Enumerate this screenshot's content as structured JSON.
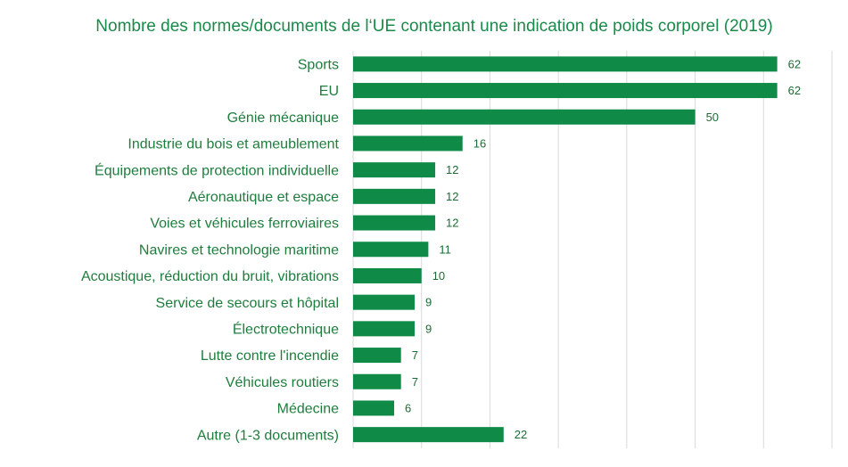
{
  "chart_data": {
    "type": "bar",
    "orientation": "horizontal",
    "title": "Nombre des normes/documents de l‘UE contenant une indication de poids corporel (2019)",
    "categories": [
      "Sports",
      "EU",
      "Génie mécanique",
      "Industrie du bois et ameublement",
      "Équipements de protection individuelle",
      "Aéronautique et espace",
      "Voies et véhicules ferroviaires",
      "Navires et technologie maritime",
      "Acoustique, réduction du bruit, vibrations",
      "Service de secours et hôpital",
      "Électrotechnique",
      "Lutte contre l'incendie",
      "Véhicules routiers",
      "Médecine",
      "Autre (1-3 documents)"
    ],
    "values": [
      62,
      62,
      50,
      16,
      12,
      12,
      12,
      11,
      10,
      9,
      9,
      7,
      7,
      6,
      22
    ],
    "xlim": [
      0,
      70
    ],
    "grid": true,
    "data_labels": true,
    "bar_color": "#0f8a47",
    "title_color": "#1a8a4a",
    "label_color": "#1e7d3c"
  }
}
